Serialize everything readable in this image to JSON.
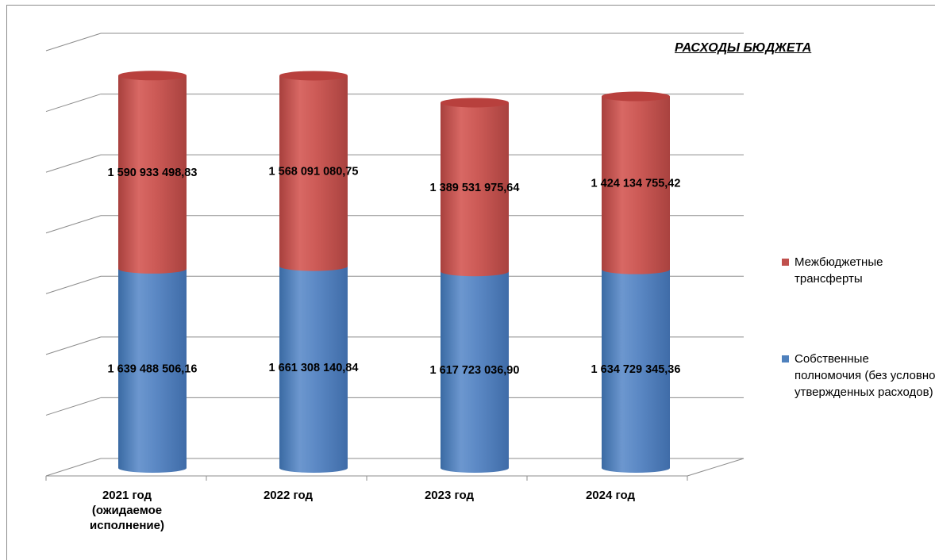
{
  "chart_data": {
    "type": "bar",
    "title": "РАСХОДЫ БЮДЖЕТА",
    "stacked": true,
    "style": "3d-cylinder",
    "categories": [
      [
        "2021 год",
        "(ожидаемое",
        "исполнение)"
      ],
      [
        "2022 год"
      ],
      [
        "2023 год"
      ],
      [
        "2024 год"
      ]
    ],
    "series": [
      {
        "name": "Собственные полномочия (без условно утвержденных расходов)",
        "color": "#4f81bd",
        "values": [
          1639488506.16,
          1661308140.84,
          1617723036.9,
          1634729345.36
        ],
        "labels": [
          "1 639 488 506,16",
          "1 661 308 140,84",
          "1 617 723 036,90",
          "1 634 729 345,36"
        ]
      },
      {
        "name": "Межбюджетные трансферты",
        "color": "#c0504d",
        "values": [
          1590933498.83,
          1568091080.75,
          1389531975.64,
          1424134755.42
        ],
        "labels": [
          "1 590 933 498,83",
          "1 568 091 080,75",
          "1 389 531 975,64",
          "1 424 134 755,42"
        ]
      }
    ],
    "ylim": [
      0,
      3500000000
    ],
    "y_gridlines": 7,
    "y_tick_labels_shown": false,
    "legend_position": "right",
    "grid": true
  },
  "legend": [
    {
      "name": "Межбюджетные трансферты",
      "color": "#c0504d"
    },
    {
      "name": "Собственные полномочия (без условно утвержденных расходов)",
      "color": "#4f81bd"
    }
  ]
}
